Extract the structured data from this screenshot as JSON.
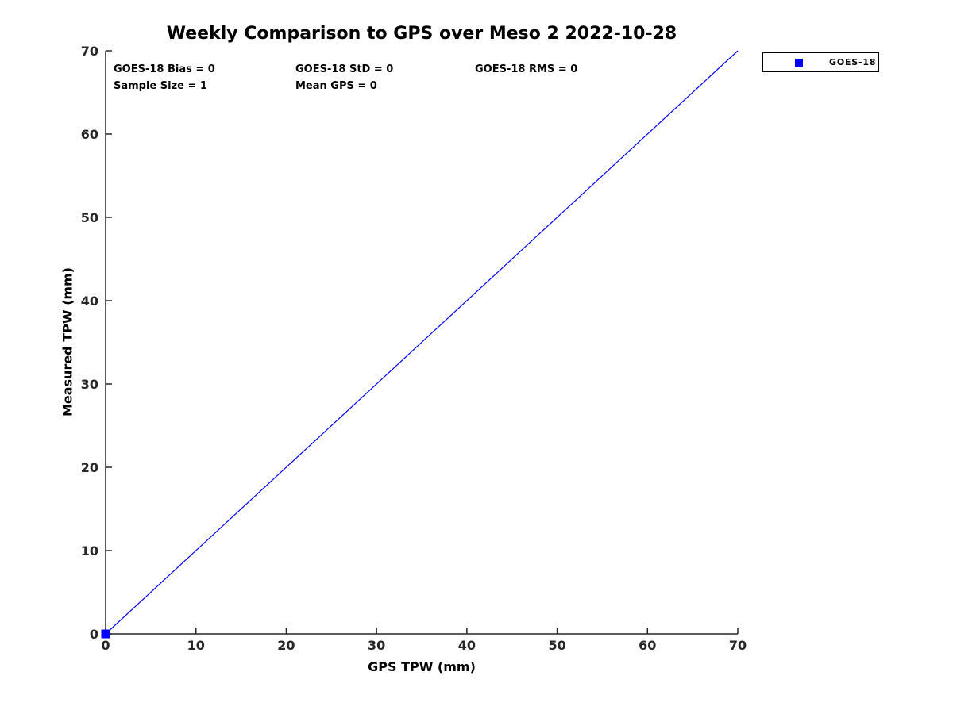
{
  "title": "Weekly Comparison to GPS over Meso 2 2022-10-28",
  "annotations": [
    {
      "label": "GOES-18 Bias = 0"
    },
    {
      "label": "GOES-18 StD = 0"
    },
    {
      "label": "GOES-18 RMS = 0"
    },
    {
      "label": "Sample Size = 1"
    },
    {
      "label": "Mean GPS = 0"
    }
  ],
  "axes": {
    "xlabel": "GPS TPW (mm)",
    "ylabel": "Measured TPW (mm)"
  },
  "legend": {
    "entries": [
      {
        "label": "GOES-18",
        "marker": "square",
        "color": "#0000ff"
      }
    ]
  },
  "colors": {
    "series_blue": "#0000ff",
    "axis": "#262626",
    "text": "#000000",
    "background": "#ffffff"
  },
  "chart_data": {
    "type": "scatter",
    "title": "Weekly Comparison to GPS over Meso 2 2022-10-28",
    "xlabel": "GPS TPW (mm)",
    "ylabel": "Measured TPW (mm)",
    "xlim": [
      0,
      70
    ],
    "ylim": [
      0,
      70
    ],
    "xticks": [
      0,
      10,
      20,
      30,
      40,
      50,
      60,
      70
    ],
    "yticks": [
      0,
      10,
      20,
      30,
      40,
      50,
      60,
      70
    ],
    "grid": false,
    "legend_entries": [
      "GOES-18"
    ],
    "legend_position": "outside-top-right",
    "series": [
      {
        "name": "GOES-18",
        "type": "scatter",
        "marker": "square",
        "color": "#0000ff",
        "points": [
          [
            0,
            0
          ]
        ]
      }
    ],
    "reference_line": {
      "note": "identity line y = x",
      "from": [
        0,
        0
      ],
      "to": [
        70,
        70
      ],
      "color": "#0000ff"
    },
    "stats": {
      "goes18_bias": 0,
      "goes18_std": 0,
      "goes18_rms": 0,
      "sample_size": 1,
      "mean_gps": 0
    }
  }
}
